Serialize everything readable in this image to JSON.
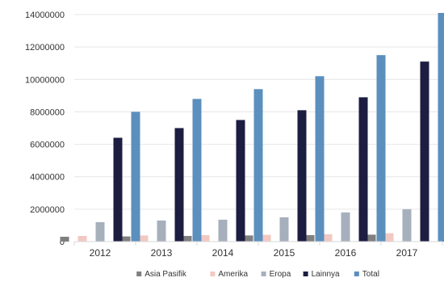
{
  "chart_data": {
    "type": "bar",
    "categories": [
      "2012",
      "2013",
      "2014",
      "2015",
      "2016",
      "2017"
    ],
    "ylim": [
      0,
      14000000
    ],
    "yticks": [
      0,
      2000000,
      4000000,
      6000000,
      8000000,
      10000000,
      12000000,
      14000000
    ],
    "ytick_labels": [
      "0",
      "2000000",
      "4000000",
      "6000000",
      "8000000",
      "10000000",
      "12000000",
      "14000000"
    ],
    "grid": true,
    "legend_position": "bottom",
    "series": [
      {
        "name": "Asia Pasifik",
        "color": "#7f7f7f",
        "values": [
          300000,
          320000,
          350000,
          380000,
          400000,
          430000
        ]
      },
      {
        "name": "Amerika",
        "color": "#f2c9c2",
        "values": [
          350000,
          380000,
          400000,
          420000,
          460000,
          520000
        ]
      },
      {
        "name": "Eropa",
        "color": "#a6b0bc",
        "values": [
          1200000,
          1300000,
          1350000,
          1500000,
          1800000,
          2000000
        ]
      },
      {
        "name": "Lainnya",
        "color": "#1c1d40",
        "values": [
          6400000,
          7000000,
          7500000,
          8100000,
          8900000,
          11100000
        ]
      },
      {
        "name": "Total",
        "color": "#5b8fbd",
        "values": [
          8000000,
          8800000,
          9400000,
          10200000,
          11500000,
          14100000
        ]
      }
    ]
  }
}
